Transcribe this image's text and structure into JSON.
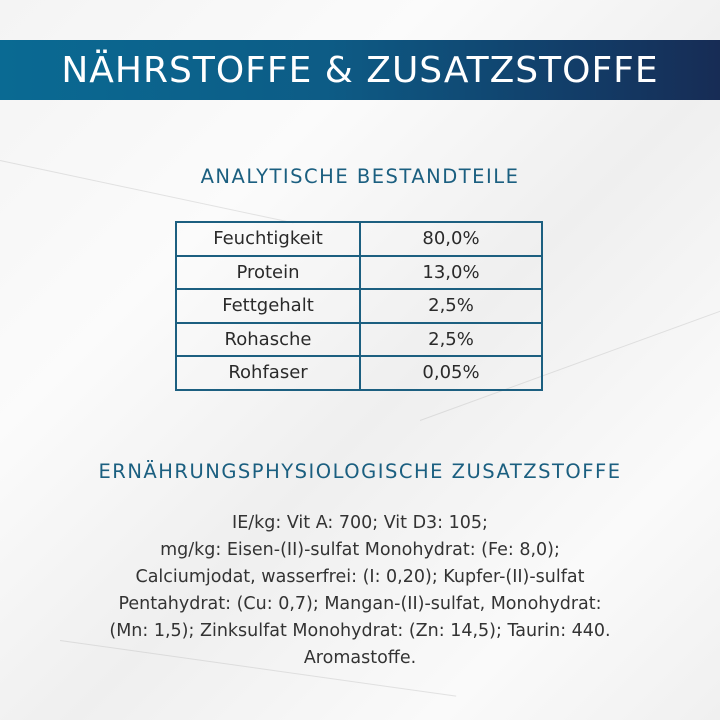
{
  "banner": {
    "title": "NÄHRSTOFFE & ZUSATZSTOFFE",
    "color_start": "#0a6a93",
    "color_end": "#172c55"
  },
  "analytic": {
    "heading": "ANALYTISCHE BESTANDTEILE",
    "rows": [
      {
        "name": "Feuchtigkeit",
        "value": "80,0%"
      },
      {
        "name": "Protein",
        "value": "13,0%"
      },
      {
        "name": "Fettgehalt",
        "value": "2,5%"
      },
      {
        "name": "Rohasche",
        "value": "2,5%"
      },
      {
        "name": "Rohfaser",
        "value": "0,05%"
      }
    ]
  },
  "additives": {
    "heading": "ERNÄHRUNGSPHYSIOLOGISCHE ZUSATZSTOFFE",
    "lines": [
      "IE/kg: Vit A: 700; Vit D3: 105;",
      "mg/kg: Eisen-(II)-sulfat Monohydrat: (Fe: 8,0);",
      "Calciumjodat, wasserfrei: (I: 0,20); Kupfer-(II)-sulfat",
      "Pentahydrat: (Cu: 0,7); Mangan-(II)-sulfat, Monohydrat:",
      "(Mn: 1,5); Zinksulfat Monohydrat: (Zn: 14,5); Taurin: 440.",
      "Aromastoffe."
    ]
  }
}
